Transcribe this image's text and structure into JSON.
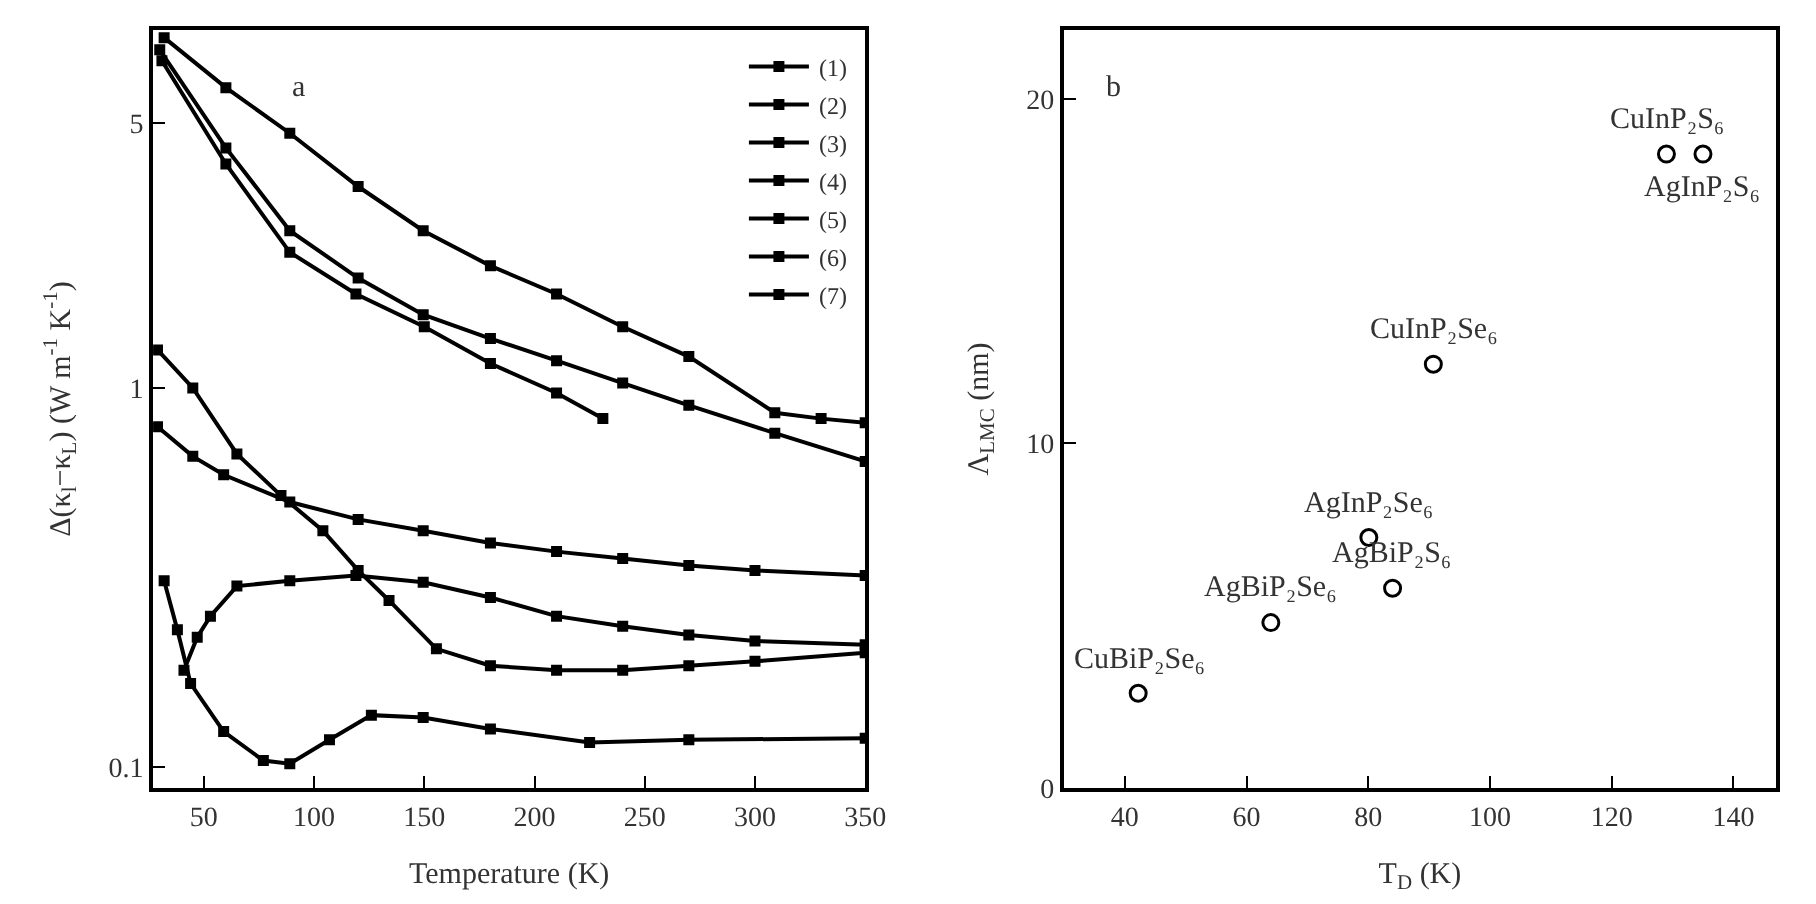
{
  "chart_data": [
    {
      "type": "line",
      "xlabel": "Temperature (K)",
      "ylabel": "Δ(κ$_{l}$−κ$_{L}$) (W m$^{-1}$ K$^{-1}$)",
      "log": "y",
      "xlim": [
        27,
        350
      ],
      "ylim": [
        0.088,
        8.8
      ],
      "xticks": [
        50,
        100,
        150,
        200,
        250,
        300,
        350
      ],
      "yticks": [
        0.1,
        1,
        5
      ],
      "marker": "square",
      "line_style": "solid",
      "legend": "top right",
      "annotations": [
        "a"
      ],
      "series": [
        {
          "name": "(1)",
          "color": "#000000",
          "x": [
            32,
            60,
            89,
            120,
            149.5,
            180,
            210,
            240,
            270,
            309,
            330,
            350
          ],
          "values": [
            8.4,
            6.2,
            4.7,
            3.4,
            2.6,
            2.1,
            1.77,
            1.45,
            1.21,
            0.86,
            0.83,
            0.81
          ]
        },
        {
          "name": "(2)",
          "color": "#000000",
          "x": [
            30,
            60,
            89,
            120,
            149.5,
            180,
            210,
            240,
            270,
            309,
            350
          ],
          "values": [
            7.8,
            4.3,
            2.6,
            1.95,
            1.56,
            1.35,
            1.18,
            1.03,
            0.9,
            0.76,
            0.64
          ]
        },
        {
          "name": "(3)",
          "color": "#000000",
          "x": [
            31,
            60,
            89,
            119,
            150,
            180,
            210,
            231
          ],
          "values": [
            7.3,
            3.9,
            2.28,
            1.77,
            1.45,
            1.16,
            0.97,
            0.83
          ]
        },
        {
          "name": "(4)",
          "color": "#000000",
          "x": [
            29,
            45,
            65,
            85,
            104,
            120,
            134,
            155.5,
            180,
            210,
            240,
            270,
            300,
            350
          ],
          "values": [
            1.26,
            1.0,
            0.67,
            0.52,
            0.42,
            0.33,
            0.275,
            0.205,
            0.185,
            0.18,
            0.18,
            0.185,
            0.19,
            0.2
          ]
        },
        {
          "name": "(5)",
          "color": "#000000",
          "x": [
            29,
            45,
            59,
            89,
            120,
            149.5,
            180,
            210,
            240,
            270,
            300,
            350
          ],
          "values": [
            0.79,
            0.66,
            0.59,
            0.5,
            0.45,
            0.42,
            0.39,
            0.37,
            0.355,
            0.34,
            0.33,
            0.32
          ]
        },
        {
          "name": "(6)",
          "color": "#000000",
          "x": [
            41,
            47,
            53,
            65,
            89,
            119,
            149.5,
            180,
            210,
            240,
            270,
            300,
            350
          ],
          "values": [
            0.18,
            0.22,
            0.25,
            0.3,
            0.31,
            0.32,
            0.307,
            0.28,
            0.25,
            0.235,
            0.223,
            0.215,
            0.21
          ]
        },
        {
          "name": "(7)",
          "color": "#000000",
          "x": [
            32,
            38,
            44,
            59,
            77,
            89,
            107,
            126,
            149.5,
            180,
            225,
            270,
            350
          ],
          "values": [
            0.31,
            0.23,
            0.166,
            0.124,
            0.104,
            0.102,
            0.118,
            0.137,
            0.135,
            0.126,
            0.116,
            0.118,
            0.119
          ]
        }
      ]
    },
    {
      "type": "scatter",
      "xlabel": "T$_{D}$ (K)",
      "ylabel": "Λ$_{LMC}$ (nm)",
      "xlim": [
        30,
        147
      ],
      "ylim": [
        0,
        22
      ],
      "xticks": [
        40,
        60,
        80,
        100,
        120,
        140
      ],
      "yticks": [
        0,
        10,
        20
      ],
      "marker": "circle",
      "legend": false,
      "series": [
        {
          "color": "#000000",
          "x": [
            42.2,
            64,
            80.1,
            84,
            90.7,
            129,
            135
          ],
          "values": [
            2.75,
            4.8,
            7.27,
            5.8,
            12.3,
            18.4,
            18.4
          ]
        }
      ],
      "annotations": [
        "b",
        {
          "text": "CuBiP₂Se₆",
          "x": 42.2,
          "y": 2.75
        },
        {
          "text": "AgBiP₂Se₆",
          "x": 64,
          "y": 4.8
        },
        {
          "text": "AgInP₂Se₆",
          "x": 80.1,
          "y": 7.27
        },
        {
          "text": "AgBiP₂S₆",
          "x": 84,
          "y": 5.8
        },
        {
          "text": "CuInP₂Se₆",
          "x": 90.7,
          "y": 12.3
        },
        {
          "text": "CuInP₂S₆",
          "x": 129,
          "y": 18.4
        },
        {
          "text": "AgInP₂S₆",
          "x": 135,
          "y": 18.4
        }
      ]
    }
  ]
}
